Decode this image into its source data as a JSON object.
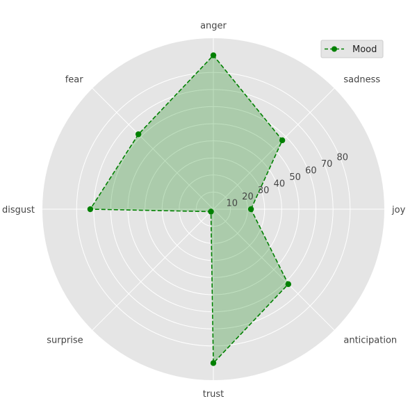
{
  "chart_data": {
    "type": "radar",
    "categories": [
      "joy",
      "sadness",
      "anger",
      "fear",
      "disgust",
      "surprise",
      "trust",
      "anticipation"
    ],
    "series": [
      {
        "name": "Mood",
        "values": [
          22,
          57,
          90,
          62,
          72,
          2,
          90,
          62
        ],
        "color": "#008000",
        "fill": "#008000",
        "line_style": "dashed",
        "marker": "circle"
      }
    ],
    "rlim": [
      0,
      100
    ],
    "radial_ticks": [
      10,
      20,
      30,
      40,
      50,
      60,
      70,
      80
    ],
    "grid": true,
    "legend": "top-right",
    "background": "#e5e5e5",
    "grid_color": "#ffffff"
  }
}
